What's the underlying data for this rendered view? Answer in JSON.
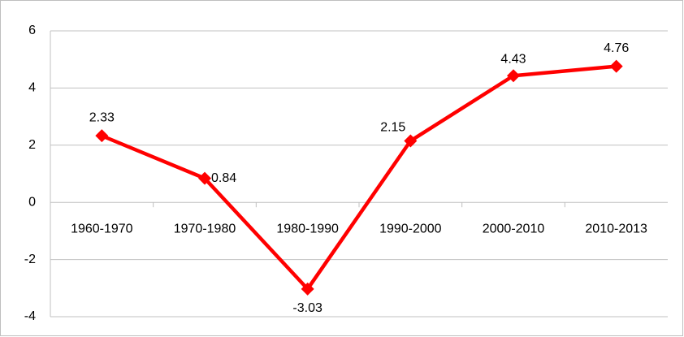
{
  "chart_data": {
    "type": "line",
    "categories": [
      "1960-1970",
      "1970-1980",
      "1980-1990",
      "1990-2000",
      "2000-2010",
      "2010-2013"
    ],
    "values": [
      2.33,
      0.84,
      -3.03,
      2.15,
      4.43,
      4.76
    ],
    "color": "#ff0000",
    "negative_label_color": "#ff0000",
    "ylim": [
      -4,
      6
    ],
    "yticks": [
      -4,
      -2,
      0,
      2,
      4,
      6
    ],
    "grid": true
  }
}
